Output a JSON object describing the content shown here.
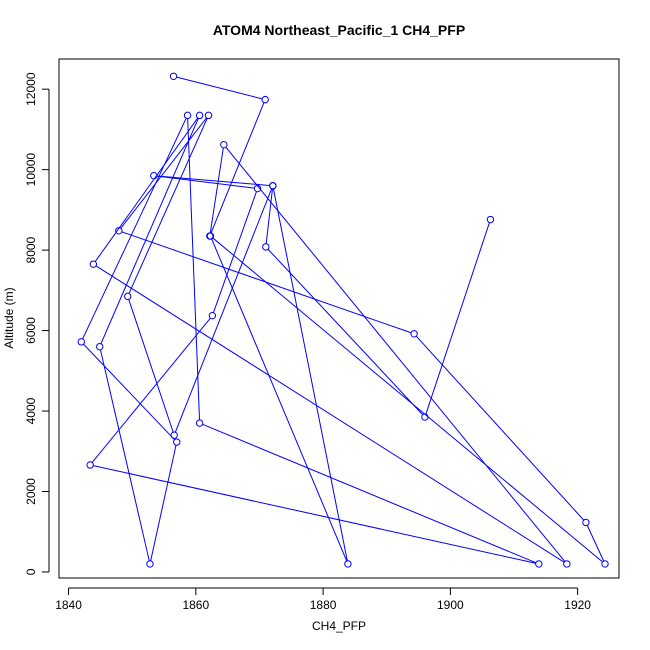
{
  "chart_data": {
    "type": "line",
    "title": "ATOM4 Northeast_Pacific_1 CH4_PFP",
    "xlabel": "CH4_PFP",
    "ylabel": "Altitude (m)",
    "xlim": [
      1838.5,
      1926.5
    ],
    "ylim": [
      -150,
      12750
    ],
    "x_ticks": [
      1840,
      1860,
      1880,
      1900,
      1920
    ],
    "y_ticks": [
      0,
      2000,
      4000,
      6000,
      8000,
      10000,
      12000
    ],
    "grid": false,
    "legend": "none",
    "color": "#0000ff",
    "marker": "open-circle",
    "series": [
      {
        "points": [
          [
            1856.5,
            12320
          ],
          [
            1870.9,
            11740
          ],
          [
            1862.2,
            8350
          ],
          [
            1864.4,
            10620
          ],
          [
            1918.3,
            200
          ],
          [
            1843.9,
            7650
          ],
          [
            1860.6,
            11350
          ],
          [
            1844.9,
            5600
          ],
          [
            1852.8,
            200
          ],
          [
            1857.0,
            3230
          ],
          [
            1842.0,
            5720
          ],
          [
            1858.7,
            11350
          ],
          [
            1860.6,
            3700
          ],
          [
            1913.9,
            200
          ],
          [
            1843.4,
            2660
          ],
          [
            1862.6,
            6370
          ],
          [
            1869.7,
            9530
          ],
          [
            1853.4,
            9850
          ],
          [
            1872.1,
            9600
          ],
          [
            1856.6,
            3400
          ],
          [
            1849.3,
            6850
          ],
          [
            1862.0,
            11350
          ],
          [
            1847.9,
            8480
          ],
          [
            1894.3,
            5920
          ],
          [
            1921.3,
            1230
          ],
          [
            1924.3,
            200
          ],
          [
            1862.3,
            8350
          ],
          [
            1883.9,
            200
          ],
          [
            1872.1,
            9600
          ],
          [
            1871.0,
            8080
          ],
          [
            1896.0,
            3850
          ],
          [
            1906.3,
            8760
          ]
        ]
      }
    ]
  }
}
